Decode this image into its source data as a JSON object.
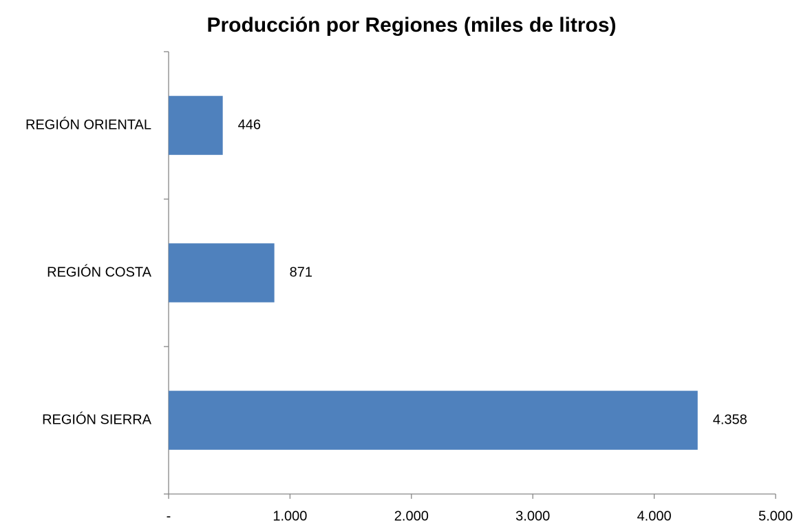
{
  "chart_data": {
    "type": "bar",
    "orientation": "horizontal",
    "title": "Producción por Regiones (miles de litros)",
    "categories": [
      "REGIÓN ORIENTAL",
      "REGIÓN COSTA",
      "REGIÓN SIERRA"
    ],
    "values": [
      446,
      871,
      4358
    ],
    "value_labels": [
      "446",
      "871",
      "4.358"
    ],
    "color": "#4f81bd",
    "xlim": [
      0,
      5000
    ],
    "xticks": [
      {
        "value": 0,
        "label": "-"
      },
      {
        "value": 1000,
        "label": "1.000"
      },
      {
        "value": 2000,
        "label": "2.000"
      },
      {
        "value": 3000,
        "label": "3.000"
      },
      {
        "value": 4000,
        "label": "4.000"
      },
      {
        "value": 5000,
        "label": "5.000"
      }
    ],
    "grid": false
  }
}
